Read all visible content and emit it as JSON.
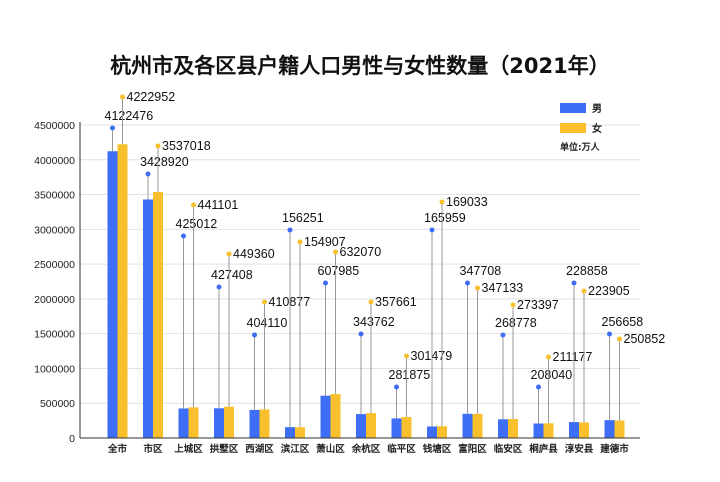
{
  "chart_data": {
    "type": "bar",
    "title": "杭州市及各区县户籍人口男性与女性数量（2021年）",
    "unit_note": "单位:万人",
    "categories": [
      "全市",
      "市区",
      "上城区",
      "拱墅区",
      "西湖区",
      "滨江区",
      "萧山区",
      "余杭区",
      "临平区",
      "钱塘区",
      "富阳区",
      "临安区",
      "桐庐县",
      "淳安县",
      "建德市"
    ],
    "series": [
      {
        "name": "男",
        "color": "#3d6ef5",
        "values": [
          4122476,
          3428920,
          425012,
          427408,
          404110,
          156251,
          607985,
          343762,
          281875,
          165959,
          347708,
          268778,
          208040,
          228858,
          256658
        ]
      },
      {
        "name": "女",
        "color": "#f8c02c",
        "values": [
          4222952,
          3537018,
          441101,
          449360,
          410877,
          154907,
          632070,
          357661,
          301479,
          169033,
          347133,
          273397,
          211177,
          223905,
          250852
        ]
      }
    ],
    "yticks": [
      0,
      500000,
      1000000,
      1500000,
      2000000,
      2500000,
      3000000,
      3500000,
      4000000,
      4500000
    ],
    "ylim": [
      0,
      4500000
    ],
    "grid": true,
    "legend": "top-right"
  }
}
